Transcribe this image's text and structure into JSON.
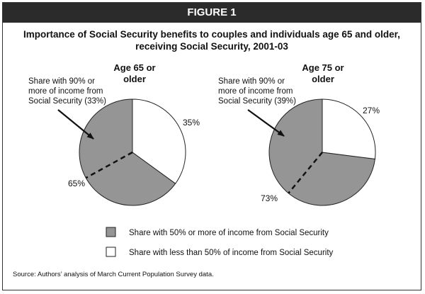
{
  "figure_label": "FIGURE 1",
  "title_line1": "Importance of Social Security benefits to couples and individuals age 65 and older,",
  "title_line2": "receiving Social Security, 2001-03",
  "source": "Source: Authors’ analysis of March Current Population Survey data.",
  "colors": {
    "grey": "#959595",
    "white": "#ffffff",
    "outline": "#222222",
    "header": "#2b2b2b"
  },
  "legend": [
    {
      "label": "Share with 50% or more of income from Social Security",
      "color": "#959595"
    },
    {
      "label": "Share with less than 50% of income from Social Security",
      "color": "#ffffff"
    }
  ],
  "chart_data": [
    {
      "type": "pie",
      "title_lines": [
        "Age 65 or",
        "older"
      ],
      "slices": [
        {
          "label": "Share with 50% or more of income from Social Security",
          "value": 65,
          "text": "65%",
          "color": "#959595"
        },
        {
          "label": "Share with less than 50% of income from Social Security",
          "value": 35,
          "text": "35%",
          "color": "#ffffff"
        }
      ],
      "sub_share": {
        "value": 33,
        "annotation_lines": [
          "Share with 90% or",
          "more of income from",
          "Social Security (33%)"
        ]
      }
    },
    {
      "type": "pie",
      "title_lines": [
        "Age 75 or",
        "older"
      ],
      "slices": [
        {
          "label": "Share with 50% or more of income from Social Security",
          "value": 73,
          "text": "73%",
          "color": "#959595"
        },
        {
          "label": "Share with less than 50% of income from Social Security",
          "value": 27,
          "text": "27%",
          "color": "#ffffff"
        }
      ],
      "sub_share": {
        "value": 39,
        "annotation_lines": [
          "Share with 90% or",
          "more of income from",
          "Social Security (39%)"
        ]
      }
    }
  ]
}
